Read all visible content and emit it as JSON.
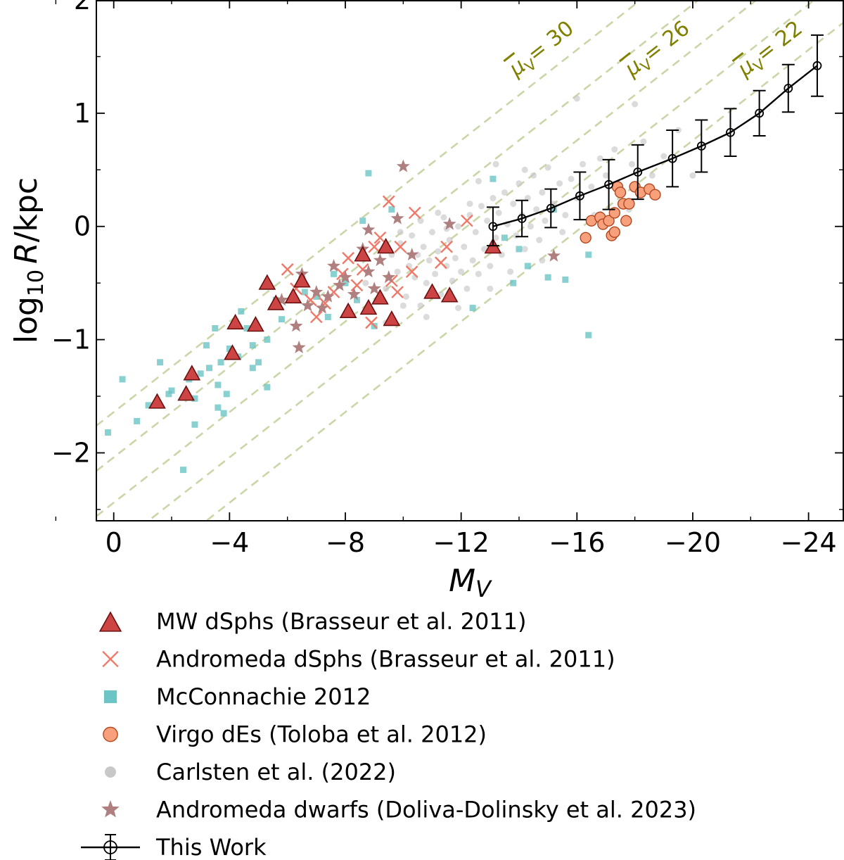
{
  "colors": {
    "mw": "#cc4444",
    "mw_edge": "#6b0f0f",
    "andromeda_dsph": "#f07868",
    "mcconnachie": "#6cc4c4",
    "virgo": "#f8a07c",
    "virgo_edge": "#b04820",
    "carlsten": "#c8c8c8",
    "doliva": "#b08080",
    "this_work": "#000000",
    "guide": "#c9d6a8",
    "mu_text": "#808000"
  },
  "chart_data": {
    "type": "scatter",
    "xlabel": "M_V",
    "ylabel": "log10 R/kpc",
    "xlim": [
      0.6,
      -25.2
    ],
    "ylim": [
      -2.6,
      2.0
    ],
    "x_ticks": [
      0,
      -4,
      -8,
      -12,
      -16,
      -20,
      -24
    ],
    "x_tick_labels": [
      "0",
      "−4",
      "−8",
      "−12",
      "−16",
      "−20",
      "−24"
    ],
    "y_ticks": [
      -2,
      -1,
      0,
      1,
      2
    ],
    "y_tick_labels": [
      "−2",
      "−1",
      "0",
      "1",
      "2"
    ],
    "x_label_parts": {
      "main": "M",
      "sub": "V"
    },
    "y_label_parts": {
      "prefix": "log",
      "sub": "10",
      "italic": "R",
      "suffix": "/kpc"
    },
    "guide_lines": [
      {
        "mu": 30,
        "label_main": "μ",
        "label_sub": "V",
        "label_value": "= 30",
        "intercept": -1.64,
        "label_x": -13.9,
        "label_y": 1.32
      },
      {
        "mu": 26,
        "label_main": "μ",
        "label_sub": "V",
        "label_value": "= 26",
        "intercept": -2.04,
        "label_x": -17.9,
        "label_y": 1.32
      },
      {
        "mu": 22,
        "label_main": "μ",
        "label_sub": "V",
        "label_value": "= 22",
        "intercept": -2.44,
        "label_x": -21.8,
        "label_y": 1.32
      },
      {
        "mu": 18,
        "intercept": -2.84
      },
      {
        "mu": 14,
        "intercept": -3.24
      }
    ],
    "guide_slope": -0.2,
    "series": [
      {
        "name": "MW dSphs (Brasseur et al. 2011)",
        "marker": "triangle",
        "points": [
          [
            -1.5,
            -1.55
          ],
          [
            -2.5,
            -1.48
          ],
          [
            -2.7,
            -1.3
          ],
          [
            -4.1,
            -1.12
          ],
          [
            -4.2,
            -0.85
          ],
          [
            -4.9,
            -0.87
          ],
          [
            -5.3,
            -0.5
          ],
          [
            -5.6,
            -0.68
          ],
          [
            -6.2,
            -0.62
          ],
          [
            -6.5,
            -0.48
          ],
          [
            -8.1,
            -0.75
          ],
          [
            -8.6,
            -0.25
          ],
          [
            -8.8,
            -0.72
          ],
          [
            -9.2,
            -0.63
          ],
          [
            -9.4,
            -0.18
          ],
          [
            -9.6,
            -0.82
          ],
          [
            -11.0,
            -0.58
          ],
          [
            -11.6,
            -0.61
          ],
          [
            -13.1,
            -0.18
          ]
        ]
      },
      {
        "name": "Andromeda dSphs (Brasseur et al. 2011)",
        "marker": "x",
        "points": [
          [
            -6.0,
            -0.38
          ],
          [
            -6.3,
            -0.55
          ],
          [
            -6.8,
            -0.65
          ],
          [
            -7.0,
            -0.8
          ],
          [
            -7.3,
            -0.68
          ],
          [
            -7.6,
            -0.58
          ],
          [
            -7.9,
            -0.42
          ],
          [
            -8.1,
            -0.28
          ],
          [
            -8.4,
            -0.52
          ],
          [
            -8.6,
            -0.38
          ],
          [
            -8.9,
            -0.85
          ],
          [
            -9.0,
            -0.18
          ],
          [
            -9.2,
            -0.1
          ],
          [
            -9.5,
            0.22
          ],
          [
            -9.6,
            -0.48
          ],
          [
            -9.8,
            -0.58
          ],
          [
            -9.9,
            -0.18
          ],
          [
            -10.3,
            -0.4
          ],
          [
            -10.4,
            0.12
          ],
          [
            -11.3,
            -0.32
          ],
          [
            -11.5,
            -0.18
          ],
          [
            -12.2,
            0.05
          ]
        ]
      },
      {
        "name": "McConnachie 2012",
        "marker": "square",
        "points": [
          [
            0.2,
            -1.82
          ],
          [
            -0.3,
            -1.35
          ],
          [
            -0.8,
            -1.72
          ],
          [
            -1.2,
            -1.58
          ],
          [
            -1.6,
            -1.2
          ],
          [
            -1.9,
            -1.48
          ],
          [
            -2.0,
            -1.45
          ],
          [
            -2.4,
            -2.15
          ],
          [
            -2.6,
            -1.35
          ],
          [
            -2.8,
            -1.52
          ],
          [
            -2.8,
            -1.75
          ],
          [
            -3.0,
            -1.3
          ],
          [
            -3.2,
            -1.05
          ],
          [
            -3.3,
            -1.25
          ],
          [
            -3.5,
            -0.9
          ],
          [
            -3.6,
            -1.4
          ],
          [
            -3.6,
            -1.6
          ],
          [
            -3.7,
            -1.2
          ],
          [
            -3.8,
            -1.65
          ],
          [
            -3.9,
            -1.48
          ],
          [
            -4.0,
            -1.08
          ],
          [
            -4.3,
            -1.15
          ],
          [
            -4.4,
            -0.75
          ],
          [
            -4.6,
            -0.9
          ],
          [
            -4.8,
            -1.05
          ],
          [
            -4.8,
            -1.25
          ],
          [
            -5.0,
            -1.2
          ],
          [
            -5.3,
            -1.0
          ],
          [
            -5.3,
            -1.42
          ],
          [
            -5.6,
            -0.65
          ],
          [
            -5.8,
            -0.82
          ],
          [
            -6.6,
            -0.58
          ],
          [
            -7.0,
            -0.62
          ],
          [
            -7.4,
            -0.8
          ],
          [
            -7.6,
            -0.42
          ],
          [
            -8.0,
            -0.5
          ],
          [
            -8.4,
            -0.65
          ],
          [
            -8.6,
            0.05
          ],
          [
            -8.8,
            0.47
          ],
          [
            -9.0,
            -0.88
          ],
          [
            -9.6,
            0.15
          ],
          [
            -11.6,
            -0.6
          ],
          [
            -12.4,
            -0.72
          ],
          [
            -13.1,
            0.42
          ],
          [
            -13.5,
            -0.1
          ],
          [
            -13.8,
            -0.5
          ],
          [
            -14.0,
            -0.2
          ],
          [
            -14.3,
            -0.35
          ],
          [
            -15.0,
            -0.45
          ],
          [
            -15.2,
            0.15
          ],
          [
            -15.6,
            -0.47
          ],
          [
            -16.4,
            -0.25
          ],
          [
            -16.4,
            -0.96
          ]
        ]
      },
      {
        "name": "Virgo dEs (Toloba et al. 2012)",
        "marker": "circle",
        "points": [
          [
            -16.3,
            -0.1
          ],
          [
            -16.5,
            0.05
          ],
          [
            -16.8,
            0.08
          ],
          [
            -16.9,
            0.02
          ],
          [
            -17.1,
            0.05
          ],
          [
            -17.2,
            -0.08
          ],
          [
            -17.3,
            0.12
          ],
          [
            -17.3,
            -0.05
          ],
          [
            -17.4,
            0.35
          ],
          [
            -17.5,
            0.3
          ],
          [
            -17.6,
            0.2
          ],
          [
            -17.7,
            0.05
          ],
          [
            -17.8,
            0.2
          ],
          [
            -18.0,
            0.35
          ],
          [
            -18.2,
            0.3
          ],
          [
            -18.5,
            0.33
          ],
          [
            -18.7,
            0.28
          ]
        ]
      },
      {
        "name": "Carlsten et al. (2022)",
        "marker": "dot",
        "points": [
          [
            -9.2,
            -0.3
          ],
          [
            -9.4,
            -0.55
          ],
          [
            -9.6,
            -0.25
          ],
          [
            -9.8,
            -0.4
          ],
          [
            -9.9,
            -0.15
          ],
          [
            -10.1,
            -0.62
          ],
          [
            -10.2,
            -0.35
          ],
          [
            -10.3,
            -0.08
          ],
          [
            -10.4,
            -0.45
          ],
          [
            -10.5,
            -0.25
          ],
          [
            -10.6,
            -0.7
          ],
          [
            -10.7,
            -0.18
          ],
          [
            -10.8,
            -0.5
          ],
          [
            -10.9,
            -0.3
          ],
          [
            -11.0,
            -0.05
          ],
          [
            -11.1,
            -0.42
          ],
          [
            -11.2,
            -0.22
          ],
          [
            -11.3,
            -0.6
          ],
          [
            -11.4,
            0.08
          ],
          [
            -11.5,
            -0.35
          ],
          [
            -11.6,
            -0.12
          ],
          [
            -11.7,
            -0.48
          ],
          [
            -11.8,
            -0.28
          ],
          [
            -11.9,
            0.0
          ],
          [
            -12.0,
            -0.4
          ],
          [
            -12.1,
            -0.18
          ],
          [
            -12.2,
            -0.55
          ],
          [
            -12.3,
            0.1
          ],
          [
            -12.4,
            -0.3
          ],
          [
            -12.5,
            -0.05
          ],
          [
            -12.6,
            -0.42
          ],
          [
            -12.7,
            0.18
          ],
          [
            -12.8,
            -0.2
          ],
          [
            -12.9,
            0.05
          ],
          [
            -13.0,
            -0.35
          ],
          [
            -13.1,
            0.25
          ],
          [
            -13.2,
            -0.1
          ],
          [
            -13.3,
            0.12
          ],
          [
            -13.4,
            -0.25
          ],
          [
            -13.5,
            0.3
          ],
          [
            -13.6,
            0.02
          ],
          [
            -13.7,
            -0.4
          ],
          [
            -13.8,
            0.2
          ],
          [
            -13.9,
            -0.08
          ],
          [
            -14.0,
            0.38
          ],
          [
            -14.1,
            0.1
          ],
          [
            -14.2,
            -0.2
          ],
          [
            -14.3,
            0.25
          ],
          [
            -14.4,
            0.0
          ],
          [
            -14.5,
            0.45
          ],
          [
            -14.6,
            0.15
          ],
          [
            -14.7,
            -0.12
          ],
          [
            -14.8,
            0.3
          ],
          [
            -14.9,
            0.05
          ],
          [
            -15.0,
            0.52
          ],
          [
            -15.2,
            0.2
          ],
          [
            -15.4,
            0.38
          ],
          [
            -15.6,
            0.1
          ],
          [
            -15.8,
            0.42
          ],
          [
            -16.0,
            0.25
          ],
          [
            -16.2,
            0.55
          ],
          [
            -16.5,
            0.35
          ],
          [
            -16.8,
            0.6
          ],
          [
            -17.0,
            0.45
          ],
          [
            -17.3,
            0.68
          ],
          [
            -17.6,
            0.3
          ],
          [
            -17.9,
            0.55
          ],
          [
            -18.3,
            0.75
          ],
          [
            -18.6,
            0.45
          ],
          [
            -19.0,
            0.62
          ],
          [
            -19.5,
            0.85
          ],
          [
            -20.0,
            0.45
          ],
          [
            -16.0,
            1.13
          ],
          [
            -18.0,
            1.08
          ],
          [
            -11.5,
            -0.02
          ],
          [
            -10.0,
            -0.7
          ],
          [
            -9.4,
            -0.85
          ],
          [
            -8.7,
            -0.5
          ],
          [
            -12.6,
            0.4
          ],
          [
            -13.2,
            0.55
          ],
          [
            -10.8,
            -0.8
          ],
          [
            -11.9,
            -0.72
          ],
          [
            -14.8,
            -0.3
          ],
          [
            -13.0,
            -0.55
          ],
          [
            -12.3,
            0.2
          ],
          [
            -11.2,
            0.12
          ],
          [
            -10.6,
            0.05
          ],
          [
            -9.9,
            -0.05
          ],
          [
            -15.5,
            -0.05
          ],
          [
            -14.2,
            0.5
          ],
          [
            -16.6,
            0.1
          ],
          [
            -17.8,
            0.15
          ]
        ]
      },
      {
        "name": "Andromeda dwarfs (Doliva-Dolinsky et al. 2023)",
        "marker": "star",
        "points": [
          [
            -5.8,
            -0.65
          ],
          [
            -6.3,
            -0.88
          ],
          [
            -6.4,
            -1.07
          ],
          [
            -6.5,
            -0.42
          ],
          [
            -6.7,
            -0.7
          ],
          [
            -7.0,
            -0.58
          ],
          [
            -7.2,
            -0.72
          ],
          [
            -7.4,
            -0.62
          ],
          [
            -7.6,
            -0.35
          ],
          [
            -7.8,
            -0.52
          ],
          [
            -8.0,
            -0.45
          ],
          [
            -8.3,
            -0.6
          ],
          [
            -8.6,
            -0.2
          ],
          [
            -8.8,
            -0.4
          ],
          [
            -9.0,
            -0.55
          ],
          [
            -9.2,
            -0.3
          ],
          [
            -9.5,
            -0.45
          ],
          [
            -9.8,
            0.07
          ],
          [
            -10.0,
            0.53
          ],
          [
            -10.3,
            -0.25
          ],
          [
            -11.6,
            0.02
          ],
          [
            -8.8,
            -0.03
          ],
          [
            -15.2,
            -0.26
          ]
        ]
      },
      {
        "name": "This Work",
        "marker": "errorbar",
        "points": [
          [
            -13.1,
            0.0
          ],
          [
            -14.1,
            0.07
          ],
          [
            -15.1,
            0.16
          ],
          [
            -16.1,
            0.27
          ],
          [
            -17.1,
            0.37
          ],
          [
            -18.1,
            0.48
          ],
          [
            -19.3,
            0.6
          ],
          [
            -20.3,
            0.71
          ],
          [
            -21.3,
            0.83
          ],
          [
            -22.3,
            1.0
          ],
          [
            -23.3,
            1.22
          ],
          [
            -24.3,
            1.42
          ]
        ],
        "errors": [
          0.17,
          0.16,
          0.17,
          0.21,
          0.22,
          0.24,
          0.25,
          0.23,
          0.21,
          0.2,
          0.21,
          0.27
        ]
      }
    ],
    "legend": [
      "MW dSphs (Brasseur et al. 2011)",
      "Andromeda dSphs (Brasseur et al. 2011)",
      "McConnachie 2012",
      "Virgo dEs (Toloba et al. 2012)",
      "Carlsten et al. (2022)",
      "Andromeda dwarfs (Doliva-Dolinsky et al. 2023)",
      "This Work"
    ]
  }
}
